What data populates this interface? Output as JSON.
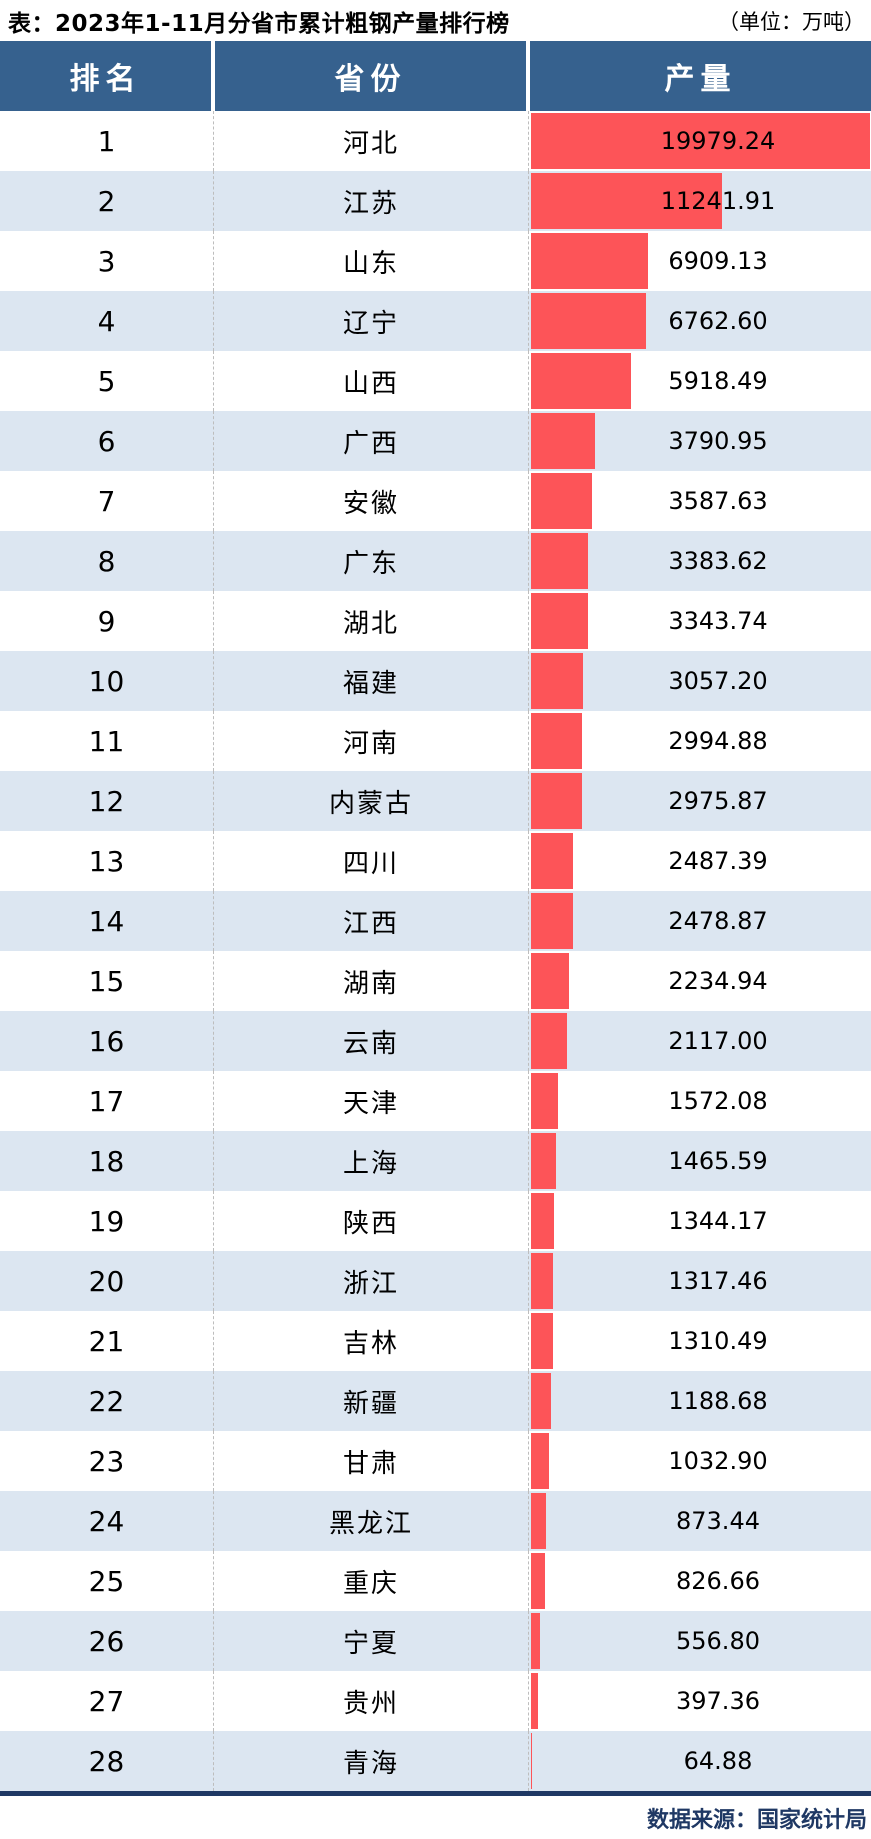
{
  "title": "表：2023年1-11月分省市累计粗钢产量排行榜",
  "unit_label": "（单位：万吨）",
  "columns": [
    "排名",
    "省份",
    "产量"
  ],
  "footer": {
    "source": "数据来源：国家统计局"
  },
  "colors": {
    "header_bg": "#36618E",
    "row_alt_bg": "#DCE6F1",
    "bar": "#FD5458",
    "divider_dash": "#BDBDBD",
    "footer_line": "#1F3864"
  },
  "chart_data": {
    "type": "bar",
    "orientation": "horizontal",
    "title": "2023年1-11月分省市累计粗钢产量排行榜",
    "unit": "万吨",
    "value_label": "产量",
    "category_label": "省份",
    "xlim": [
      0,
      19979.24
    ],
    "max_value": 19979.24,
    "categories": [
      "河北",
      "江苏",
      "山东",
      "辽宁",
      "山西",
      "广西",
      "安徽",
      "广东",
      "湖北",
      "福建",
      "河南",
      "内蒙古",
      "四川",
      "江西",
      "湖南",
      "云南",
      "天津",
      "上海",
      "陕西",
      "浙江",
      "吉林",
      "新疆",
      "甘肃",
      "黑龙江",
      "重庆",
      "宁夏",
      "贵州",
      "青海"
    ],
    "values": [
      19979.24,
      11241.91,
      6909.13,
      6762.6,
      5918.49,
      3790.95,
      3587.63,
      3383.62,
      3343.74,
      3057.2,
      2994.88,
      2975.87,
      2487.39,
      2478.87,
      2234.94,
      2117.0,
      1572.08,
      1465.59,
      1344.17,
      1317.46,
      1310.49,
      1188.68,
      1032.9,
      873.44,
      826.66,
      556.8,
      397.36,
      64.88
    ],
    "ranks": [
      1,
      2,
      3,
      4,
      5,
      6,
      7,
      8,
      9,
      10,
      11,
      12,
      13,
      14,
      15,
      16,
      17,
      18,
      19,
      20,
      21,
      22,
      23,
      24,
      25,
      26,
      27,
      28
    ]
  },
  "rows": [
    {
      "rank": "1",
      "province": "河北",
      "value": "19979.24",
      "num": 19979.24
    },
    {
      "rank": "2",
      "province": "江苏",
      "value": "11241.91",
      "num": 11241.91
    },
    {
      "rank": "3",
      "province": "山东",
      "value": "6909.13",
      "num": 6909.13
    },
    {
      "rank": "4",
      "province": "辽宁",
      "value": "6762.60",
      "num": 6762.6
    },
    {
      "rank": "5",
      "province": "山西",
      "value": "5918.49",
      "num": 5918.49
    },
    {
      "rank": "6",
      "province": "广西",
      "value": "3790.95",
      "num": 3790.95
    },
    {
      "rank": "7",
      "province": "安徽",
      "value": "3587.63",
      "num": 3587.63
    },
    {
      "rank": "8",
      "province": "广东",
      "value": "3383.62",
      "num": 3383.62
    },
    {
      "rank": "9",
      "province": "湖北",
      "value": "3343.74",
      "num": 3343.74
    },
    {
      "rank": "10",
      "province": "福建",
      "value": "3057.20",
      "num": 3057.2
    },
    {
      "rank": "11",
      "province": "河南",
      "value": "2994.88",
      "num": 2994.88
    },
    {
      "rank": "12",
      "province": "内蒙古",
      "value": "2975.87",
      "num": 2975.87
    },
    {
      "rank": "13",
      "province": "四川",
      "value": "2487.39",
      "num": 2487.39
    },
    {
      "rank": "14",
      "province": "江西",
      "value": "2478.87",
      "num": 2478.87
    },
    {
      "rank": "15",
      "province": "湖南",
      "value": "2234.94",
      "num": 2234.94
    },
    {
      "rank": "16",
      "province": "云南",
      "value": "2117.00",
      "num": 2117.0
    },
    {
      "rank": "17",
      "province": "天津",
      "value": "1572.08",
      "num": 1572.08
    },
    {
      "rank": "18",
      "province": "上海",
      "value": "1465.59",
      "num": 1465.59
    },
    {
      "rank": "19",
      "province": "陕西",
      "value": "1344.17",
      "num": 1344.17
    },
    {
      "rank": "20",
      "province": "浙江",
      "value": "1317.46",
      "num": 1317.46
    },
    {
      "rank": "21",
      "province": "吉林",
      "value": "1310.49",
      "num": 1310.49
    },
    {
      "rank": "22",
      "province": "新疆",
      "value": "1188.68",
      "num": 1188.68
    },
    {
      "rank": "23",
      "province": "甘肃",
      "value": "1032.90",
      "num": 1032.9
    },
    {
      "rank": "24",
      "province": "黑龙江",
      "value": "873.44",
      "num": 873.44
    },
    {
      "rank": "25",
      "province": "重庆",
      "value": "826.66",
      "num": 826.66
    },
    {
      "rank": "26",
      "province": "宁夏",
      "value": "556.80",
      "num": 556.8
    },
    {
      "rank": "27",
      "province": "贵州",
      "value": "397.36",
      "num": 397.36
    },
    {
      "rank": "28",
      "province": "青海",
      "value": "64.88",
      "num": 64.88
    }
  ]
}
